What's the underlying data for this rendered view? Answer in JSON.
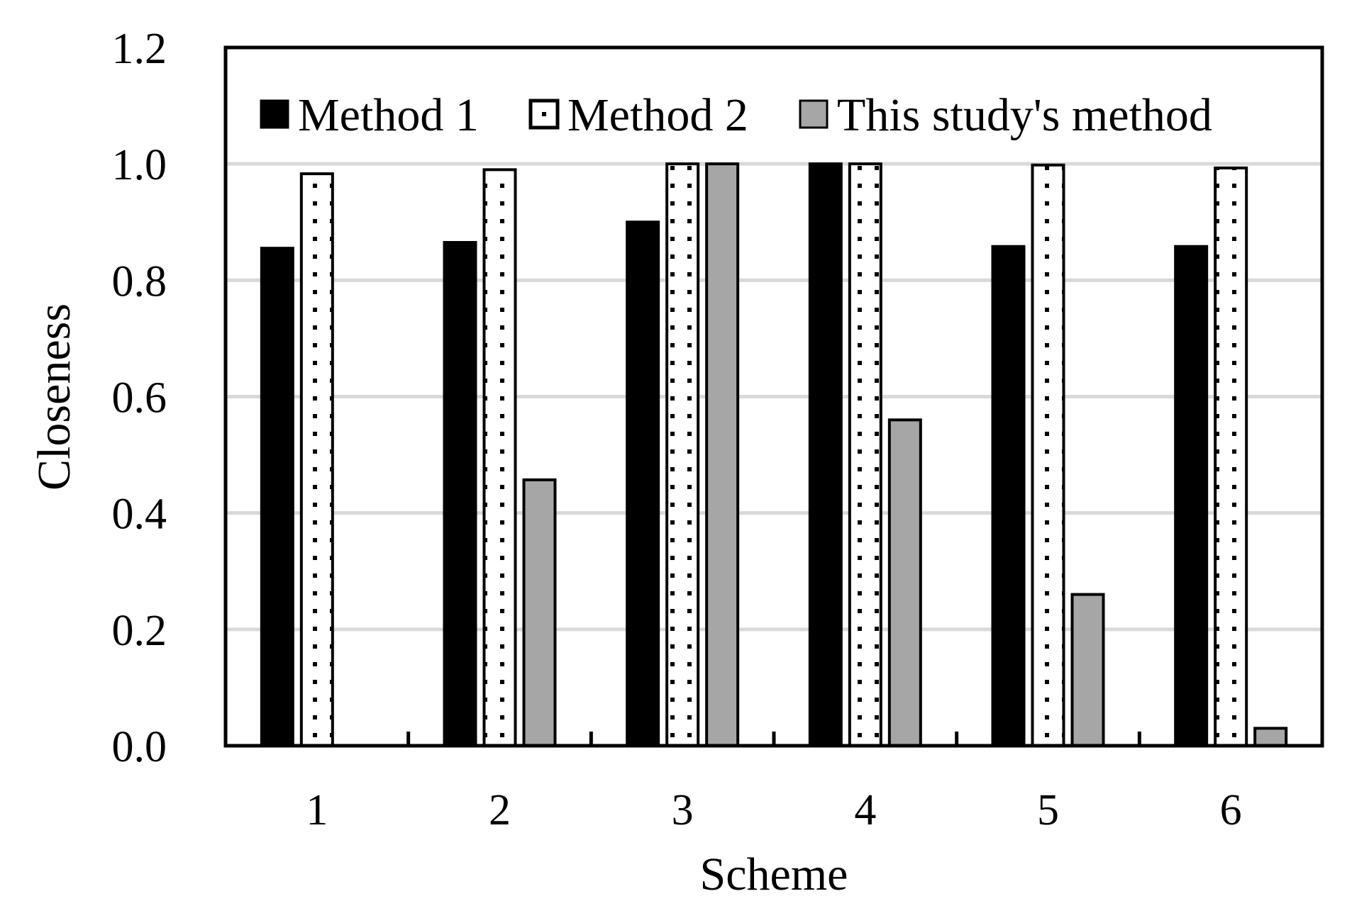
{
  "chart_data": {
    "type": "bar",
    "title": "",
    "xlabel": "Scheme",
    "ylabel": "Closeness",
    "categories": [
      "1",
      "2",
      "3",
      "4",
      "5",
      "6"
    ],
    "ylim": [
      0,
      1.2
    ],
    "yticks": [
      "0.0",
      "0.2",
      "0.4",
      "0.6",
      "0.8",
      "1.0",
      "1.2"
    ],
    "gridlines": true,
    "legend_position": "top",
    "series": [
      {
        "name": "Method 1",
        "values": [
          0.855,
          0.865,
          0.9,
          1.0,
          0.858,
          0.858
        ]
      },
      {
        "name": "Method 2",
        "values": [
          0.983,
          0.99,
          1.0,
          1.0,
          0.998,
          0.993
        ]
      },
      {
        "name": "This study's method",
        "values": [
          0.0,
          0.457,
          1.0,
          0.56,
          0.26,
          0.03
        ]
      }
    ],
    "colors": {
      "method1": "#000000",
      "method2": "#ffffff",
      "this_study": "#a6a6a6",
      "grid": "#d9d9d9"
    }
  }
}
